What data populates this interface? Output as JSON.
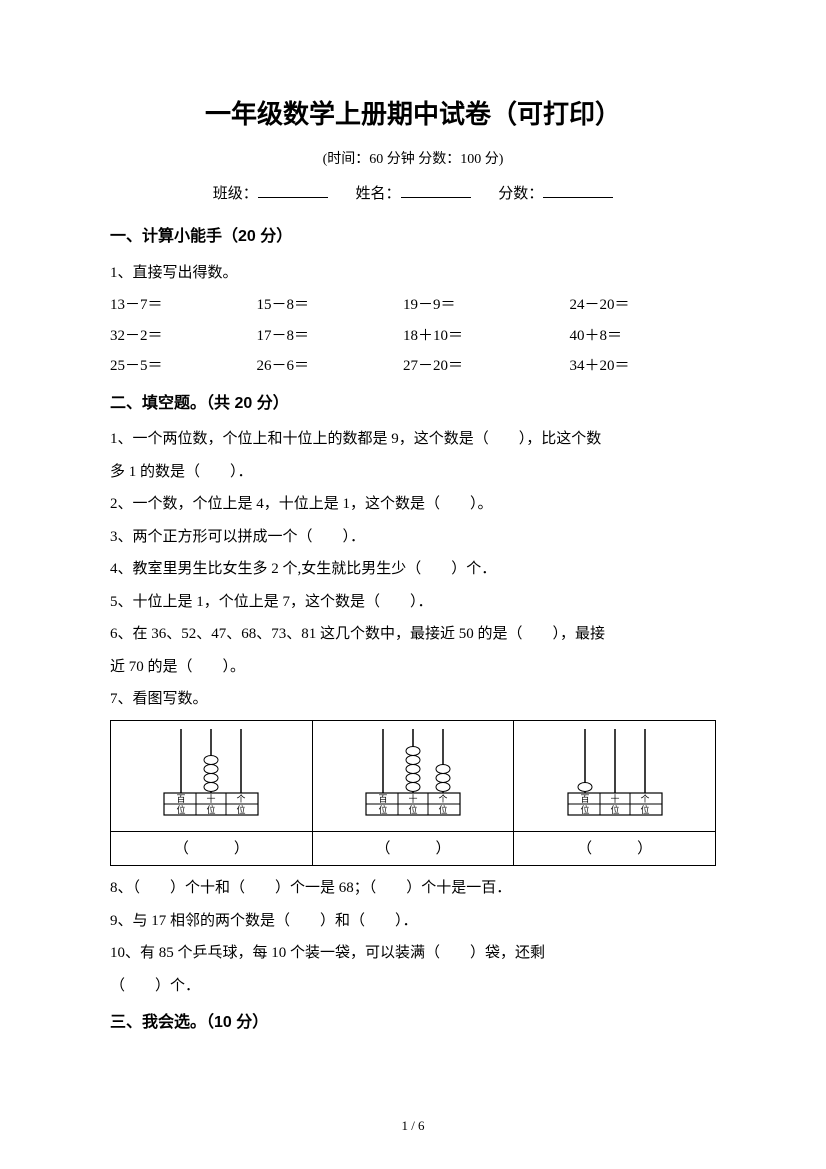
{
  "title": "一年级数学上册期中试卷（可打印）",
  "subtitle": "(时间：60 分钟    分数：100 分)",
  "info": {
    "class_label": "班级：",
    "name_label": "姓名：",
    "score_label": "分数："
  },
  "section1": {
    "heading": "一、计算小能手（20 分）",
    "q1_label": "1、直接写出得数。",
    "rows": [
      [
        "13－7＝",
        "15－8＝",
        "19－9＝",
        "24－20＝"
      ],
      [
        "32－2＝",
        "17－8＝",
        "18＋10＝",
        "40＋8＝"
      ],
      [
        "25－5＝",
        "26－6＝",
        "27－20＝",
        "34＋20＝"
      ]
    ]
  },
  "section2": {
    "heading": "二、填空题。（共 20 分）",
    "q1a": "1、一个两位数，个位上和十位上的数都是 9，这个数是（　　），比这个数",
    "q1b": "多 1 的数是（　　）．",
    "q2": "2、一个数，个位上是 4，十位上是 1，这个数是（　　）。",
    "q3": "3、两个正方形可以拼成一个（　　）．",
    "q4": "4、教室里男生比女生多 2 个,女生就比男生少（　　）个．",
    "q5": "5、十位上是 1，个位上是 7，这个数是（　　）．",
    "q6a": "6、在 36、52、47、68、73、81 这几个数中，最接近 50 的是（　　），最接",
    "q6b": "近 70 的是（　　）。",
    "q7": "7、看图写数。",
    "abacus": {
      "columns_labels": [
        "百位",
        "十位",
        "个位"
      ],
      "beads": [
        {
          "hundreds": 0,
          "tens": 4,
          "ones": 0
        },
        {
          "hundreds": 0,
          "tens": 5,
          "ones": 3
        },
        {
          "hundreds": 1,
          "tens": 0,
          "ones": 0
        }
      ],
      "line_color": "#000000",
      "bead_fill": "#ffffff",
      "bead_stroke": "#000000",
      "answer_placeholder": "（　　　）"
    },
    "q8": "8、（　　）个十和（　　）个一是 68；（　　）个十是一百．",
    "q9": "9、与 17 相邻的两个数是（　　）和（　　）．",
    "q10a": "10、有 85 个乒乓球，每 10 个装一袋，可以装满（　　）袋，还剩",
    "q10b": "（　　）个．"
  },
  "section3": {
    "heading": "三、我会选。（10 分）"
  },
  "footer": "1 / 6",
  "colors": {
    "text": "#000000",
    "background": "#ffffff"
  },
  "typography": {
    "title_fontsize_pt": 20,
    "body_fontsize_pt": 11,
    "section_fontsize_pt": 12
  }
}
